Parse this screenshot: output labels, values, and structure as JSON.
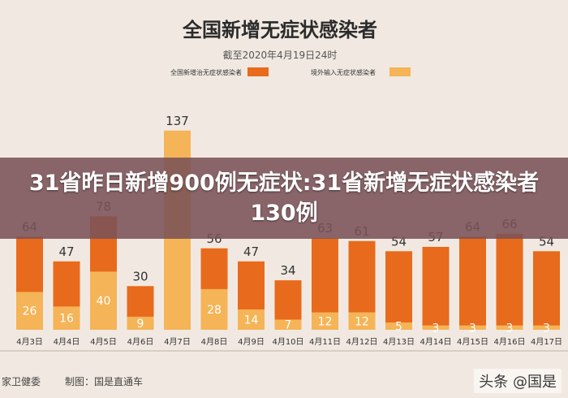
{
  "chart_data": {
    "type": "bar",
    "stacked": true,
    "title": "全国新增无症状感染者",
    "subtitle": "截至2020年4月19日24时",
    "categories": [
      "4月3日",
      "4月4日",
      "4月5日",
      "4月6日",
      "4月7日",
      "4月8日",
      "4月9日",
      "4月10日",
      "4月11日",
      "4月12日",
      "4月13日",
      "4月14日",
      "4月15日",
      "4月16日",
      "4月17日"
    ],
    "totals": [
      64,
      47,
      78,
      30,
      137,
      56,
      47,
      34,
      63,
      61,
      54,
      57,
      64,
      66,
      54
    ],
    "series": [
      {
        "name": "全国新增治无症状感染者",
        "color": "#e86a1c",
        "values": [
          26,
          16,
          40,
          9,
          0,
          28,
          14,
          7,
          12,
          12,
          5,
          3,
          3,
          3,
          3
        ]
      },
      {
        "name": "境外输入无症状感染者",
        "color": "#f5b457",
        "values": [
          38,
          31,
          38,
          21,
          137,
          28,
          33,
          27,
          51,
          49,
          49,
          54,
          61,
          63,
          51
        ]
      }
    ],
    "ylim": [
      0,
      140
    ],
    "legend": "top",
    "grid": false
  },
  "overlay": {
    "headline": "31省昨日新增900例无症状:31省新增无症状感染者130例"
  },
  "footer": {
    "source": "家卫健委",
    "credit": "制图：国是直通车",
    "watermark": "头条 @国是"
  },
  "colors": {
    "background": "#f1e9e1",
    "overlay": "#7a5258"
  }
}
